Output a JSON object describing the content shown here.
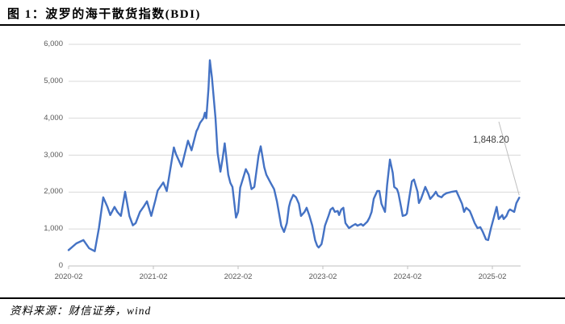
{
  "figure": {
    "label": "图 1：",
    "title": "图 1：波罗的海干散货指数(BDI)",
    "source": "资料来源：财信证券，wind"
  },
  "chart_data": {
    "type": "line",
    "title": "波罗的海干散货指数(BDI)",
    "series_name": "BDI",
    "x_axis": {
      "tick_labels": [
        "2020-02",
        "2021-02",
        "2022-02",
        "2023-02",
        "2024-02",
        "2025-02"
      ],
      "unit": "t = months since 2020-02",
      "range_months": [
        0,
        64
      ]
    },
    "y_axis": {
      "tick_labels": [
        "0",
        "1,000",
        "2,000",
        "3,000",
        "4,000",
        "5,000",
        "6,000"
      ],
      "min": 0,
      "max": 6000,
      "step": 1000
    },
    "annotation": {
      "text": "1,848.20",
      "value": 1848.2
    },
    "legend": "none",
    "grid": "horizontal",
    "colors": {
      "line": "#4472C4",
      "grid": "#D9D9D9",
      "axis": "#BFBFBF",
      "tick_text": "#595959",
      "annotation_text": "#404040",
      "leader_line": "#BFBFBF"
    },
    "points": [
      [
        0,
        430
      ],
      [
        1.1,
        610
      ],
      [
        2.1,
        700
      ],
      [
        2.9,
        480
      ],
      [
        3.7,
        400
      ],
      [
        4.3,
        1030
      ],
      [
        4.9,
        1860
      ],
      [
        5.5,
        1600
      ],
      [
        5.9,
        1380
      ],
      [
        6.5,
        1600
      ],
      [
        6.9,
        1465
      ],
      [
        7.4,
        1355
      ],
      [
        8,
        2010
      ],
      [
        8.6,
        1355
      ],
      [
        9.1,
        1100
      ],
      [
        9.5,
        1160
      ],
      [
        10.1,
        1465
      ],
      [
        10.6,
        1600
      ],
      [
        11.1,
        1750
      ],
      [
        11.7,
        1355
      ],
      [
        12.3,
        1790
      ],
      [
        12.6,
        2040
      ],
      [
        13.4,
        2260
      ],
      [
        13.9,
        2030
      ],
      [
        14.9,
        3210
      ],
      [
        15.2,
        3030
      ],
      [
        16,
        2690
      ],
      [
        16.9,
        3390
      ],
      [
        17.4,
        3130
      ],
      [
        18.1,
        3650
      ],
      [
        18.3,
        3720
      ],
      [
        18.6,
        3870
      ],
      [
        19.1,
        4000
      ],
      [
        19.3,
        4150
      ],
      [
        19.5,
        4000
      ],
      [
        19.8,
        4800
      ],
      [
        20,
        5570
      ],
      [
        20.3,
        5100
      ],
      [
        20.8,
        4000
      ],
      [
        21.1,
        3060
      ],
      [
        21.5,
        2550
      ],
      [
        21.8,
        2910
      ],
      [
        22.1,
        3320
      ],
      [
        22.6,
        2470
      ],
      [
        22.9,
        2250
      ],
      [
        23.2,
        2140
      ],
      [
        23.7,
        1310
      ],
      [
        24,
        1465
      ],
      [
        24.3,
        2120
      ],
      [
        25.1,
        2620
      ],
      [
        25.5,
        2470
      ],
      [
        25.9,
        2080
      ],
      [
        26.3,
        2140
      ],
      [
        26.9,
        3000
      ],
      [
        27.2,
        3240
      ],
      [
        27.7,
        2670
      ],
      [
        28,
        2470
      ],
      [
        28.6,
        2250
      ],
      [
        29.1,
        2080
      ],
      [
        29.5,
        1750
      ],
      [
        30.1,
        1090
      ],
      [
        30.5,
        920
      ],
      [
        30.9,
        1160
      ],
      [
        31.2,
        1600
      ],
      [
        31.4,
        1750
      ],
      [
        31.8,
        1925
      ],
      [
        32.2,
        1860
      ],
      [
        32.6,
        1685
      ],
      [
        32.9,
        1355
      ],
      [
        33.4,
        1465
      ],
      [
        33.7,
        1575
      ],
      [
        34.1,
        1355
      ],
      [
        34.5,
        1090
      ],
      [
        34.9,
        700
      ],
      [
        35.2,
        545
      ],
      [
        35.4,
        500
      ],
      [
        35.8,
        590
      ],
      [
        36,
        765
      ],
      [
        36.3,
        1090
      ],
      [
        36.8,
        1355
      ],
      [
        37.1,
        1530
      ],
      [
        37.4,
        1575
      ],
      [
        37.7,
        1465
      ],
      [
        38.1,
        1490
      ],
      [
        38.3,
        1380
      ],
      [
        38.6,
        1530
      ],
      [
        38.9,
        1575
      ],
      [
        39.2,
        1160
      ],
      [
        39.7,
        1025
      ],
      [
        39.9,
        1050
      ],
      [
        40.2,
        1090
      ],
      [
        40.6,
        1135
      ],
      [
        40.9,
        1090
      ],
      [
        41.4,
        1135
      ],
      [
        41.7,
        1090
      ],
      [
        42.3,
        1200
      ],
      [
        42.6,
        1310
      ],
      [
        42.9,
        1465
      ],
      [
        43.2,
        1815
      ],
      [
        43.7,
        2030
      ],
      [
        44,
        2030
      ],
      [
        44.3,
        1685
      ],
      [
        44.8,
        1465
      ],
      [
        45.1,
        2190
      ],
      [
        45.5,
        2880
      ],
      [
        45.9,
        2520
      ],
      [
        46.1,
        2140
      ],
      [
        46.5,
        2080
      ],
      [
        46.7,
        1970
      ],
      [
        47.1,
        1575
      ],
      [
        47.3,
        1355
      ],
      [
        47.7,
        1380
      ],
      [
        47.9,
        1420
      ],
      [
        48.2,
        1815
      ],
      [
        48.6,
        2290
      ],
      [
        48.9,
        2340
      ],
      [
        49.4,
        2010
      ],
      [
        49.6,
        1705
      ],
      [
        49.9,
        1815
      ],
      [
        50.3,
        2030
      ],
      [
        50.5,
        2140
      ],
      [
        50.9,
        1970
      ],
      [
        51.2,
        1815
      ],
      [
        51.7,
        1925
      ],
      [
        52,
        2010
      ],
      [
        52.3,
        1900
      ],
      [
        52.8,
        1860
      ],
      [
        53.1,
        1925
      ],
      [
        53.5,
        1970
      ],
      [
        54.3,
        2010
      ],
      [
        54.9,
        2030
      ],
      [
        55.2,
        1900
      ],
      [
        55.7,
        1685
      ],
      [
        56,
        1465
      ],
      [
        56.3,
        1575
      ],
      [
        56.8,
        1490
      ],
      [
        57.1,
        1355
      ],
      [
        57.5,
        1160
      ],
      [
        57.9,
        1025
      ],
      [
        58.3,
        1050
      ],
      [
        58.6,
        940
      ],
      [
        59.1,
        720
      ],
      [
        59.4,
        700
      ],
      [
        59.8,
        1025
      ],
      [
        60.2,
        1310
      ],
      [
        60.6,
        1600
      ],
      [
        60.9,
        1270
      ],
      [
        61.4,
        1380
      ],
      [
        61.6,
        1270
      ],
      [
        62,
        1355
      ],
      [
        62.3,
        1490
      ],
      [
        62.5,
        1530
      ],
      [
        63.1,
        1465
      ],
      [
        63.4,
        1705
      ],
      [
        63.8,
        1848.2
      ]
    ]
  }
}
